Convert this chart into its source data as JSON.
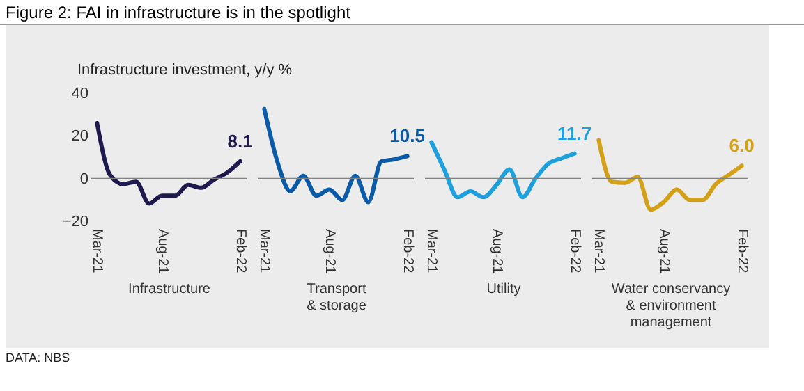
{
  "chart_data": [
    {
      "type": "line",
      "title": "Figure 2: FAI in infrastructure is in the spotlight",
      "ylabel": "Infrastructure investment, y/y %",
      "xlabel": "Infrastructure",
      "annotations": [
        "DATA: NBS"
      ],
      "categories": [
        "Mar-21",
        null,
        null,
        null,
        null,
        "Aug-21",
        null,
        null,
        null,
        null,
        null,
        "Feb-22"
      ],
      "series": [
        {
          "color": "#1f1a4e",
          "values": [
            26,
            1.7,
            -2.6,
            -1.5,
            -11.7,
            -8,
            -8,
            -3,
            -4.3,
            -0.5,
            2.8,
            8.1
          ],
          "value_labels": [
            null,
            null,
            null,
            null,
            null,
            null,
            null,
            null,
            null,
            null,
            null,
            "8.1"
          ]
        }
      ],
      "ylim": [
        -20,
        40
      ],
      "yticks": [
        -20,
        0,
        20,
        40
      ],
      "ref_lines": [
        {
          "axis": "y",
          "value": 0,
          "color": "#808080"
        }
      ]
    },
    {
      "type": "line",
      "xlabel": "Transport\n& storage",
      "categories": [
        "Mar-21",
        null,
        null,
        null,
        null,
        "Aug-21",
        null,
        null,
        null,
        null,
        null,
        "Feb-22"
      ],
      "series": [
        {
          "color": "#0a5aa8",
          "values": [
            32.6,
            8,
            -5.9,
            1.3,
            -8,
            -5.2,
            -10,
            1.3,
            -11,
            8,
            9,
            10.5
          ],
          "value_labels": [
            null,
            null,
            null,
            null,
            null,
            null,
            null,
            null,
            null,
            null,
            null,
            "10.5"
          ]
        }
      ],
      "ylim": [
        -20,
        40
      ],
      "tick_labels": "x",
      "ref_lines": [
        {
          "axis": "y",
          "value": 0,
          "color": "#808080"
        }
      ]
    },
    {
      "type": "line",
      "xlabel": "Utility",
      "categories": [
        "Mar-21",
        null,
        null,
        null,
        null,
        "Aug-21",
        null,
        null,
        null,
        null,
        null,
        "Feb-22"
      ],
      "series": [
        {
          "color": "#1ea0dc",
          "values": [
            17,
            4,
            -8.7,
            -6,
            -8.7,
            -3,
            4.3,
            -8.7,
            0,
            7,
            9.5,
            11.7
          ],
          "value_labels": [
            null,
            null,
            null,
            null,
            null,
            null,
            null,
            null,
            null,
            null,
            null,
            "11.7"
          ]
        }
      ],
      "ylim": [
        -20,
        40
      ],
      "tick_labels": "x",
      "ref_lines": [
        {
          "axis": "y",
          "value": 0,
          "color": "#808080"
        }
      ]
    },
    {
      "type": "line",
      "xlabel": "Water conservancy\n& environment\nmanagement",
      "categories": [
        "Mar-21",
        null,
        null,
        null,
        null,
        "Aug-21",
        null,
        null,
        null,
        null,
        null,
        "Feb-22"
      ],
      "series": [
        {
          "color": "#d4a017",
          "values": [
            18,
            -1.5,
            -2,
            0.7,
            -14.6,
            -11,
            -5.2,
            -10,
            -10,
            -2.6,
            1.7,
            6.0
          ],
          "value_labels": [
            null,
            null,
            null,
            null,
            null,
            null,
            null,
            null,
            null,
            null,
            null,
            "6.0"
          ]
        }
      ],
      "ylim": [
        -20,
        40
      ],
      "tick_labels": "x",
      "ref_lines": [
        {
          "axis": "y",
          "value": 0,
          "color": "#808080"
        }
      ]
    }
  ]
}
